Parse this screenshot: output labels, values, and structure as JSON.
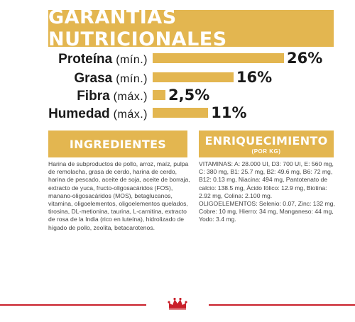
{
  "header": {
    "title": "GARANTÍAS NUTRICIONALES"
  },
  "nutrients": [
    {
      "name": "Proteína",
      "unit": "(mín.)",
      "value": "26%",
      "percent": 26
    },
    {
      "name": "Grasa",
      "unit": "(mín.)",
      "value": "16%",
      "percent": 16
    },
    {
      "name": "Fibra",
      "unit": "(máx.)",
      "value": "2,5%",
      "percent": 2.5
    },
    {
      "name": "Humedad",
      "unit": "(máx.)",
      "value": "11%",
      "percent": 11
    }
  ],
  "ingredients": {
    "title": "INGREDIENTES",
    "text": "Harina de subproductos de pollo, arroz, maíz, pulpa de remolacha, grasa de cerdo, harina de cerdo, harina de pescado, aceite de soja, aceite de borraja, extracto de yuca, fructo-oligosacáridos (FOS), manano-oligosacáridos (MOS), betaglucanos, vitamina, oligoelementos, oligoelementos quelados, tirosina, DL-metionina, taurina, L-carnitina, extracto de rosa de la India (rico en luteína), hidrolizado de hígado de pollo, zeolita, betacarotenos."
  },
  "enrichment": {
    "title": "ENRIQUECIMIENTO",
    "subtitle": "(POR KG)",
    "vitamins": "VITAMINAS: A: 28.000 UI, D3: 700 UI, E: 560 mg, C: 380 mg, B1: 25.7 mg, B2: 49.6 mg, B6: 72 mg, B12: 0.13 mg, Niacina: 494 mg, Pantotenato de calcio: 138.5 mg, Ácido fólico: 12.9 mg, Biotina: 2.92 mg, Colina: 2.100 mg.",
    "trace_elements": "OLIGOELEMENTOS: Selenio: 0.07, Zinc: 132 mg, Cobre: 10 mg, Hierro: 34 mg, Manganeso: 44 mg, Yodo: 3.4 mg."
  },
  "colors": {
    "accent": "#e3b650",
    "brand_red": "#c9202a",
    "text": "#1a1a1a"
  }
}
